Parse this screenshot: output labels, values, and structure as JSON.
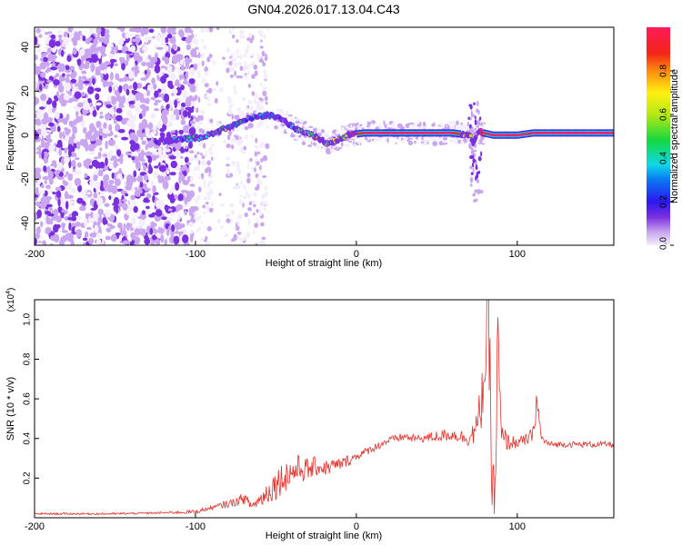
{
  "chart_data": [
    {
      "type": "heatmap",
      "title": "GN04.2026.017.13.04.C43",
      "xlabel": "Height of straight line (km)",
      "ylabel": "Frequency (Hz)",
      "xlim": [
        -200,
        160
      ],
      "ylim": [
        -50,
        49
      ],
      "x_ticks": [
        -200,
        -100,
        0,
        100
      ],
      "y_ticks": [
        -40,
        -20,
        0,
        20,
        40
      ],
      "colorbar": {
        "label": "Normalized spectral amplitude",
        "range": [
          0,
          1
        ],
        "ticks": [
          "0.0",
          "0.2",
          "0.4",
          "0.6",
          "0.8"
        ]
      },
      "ridge": {
        "x": [
          -125,
          -110,
          -95,
          -85,
          -75,
          -65,
          -55,
          -48,
          -40,
          -32,
          -25,
          -18,
          -12,
          -5,
          5,
          20,
          40,
          60,
          70,
          73,
          76,
          79,
          85,
          100,
          110,
          120,
          140,
          160
        ],
        "y": [
          -3,
          -2,
          -1,
          2,
          5,
          8,
          9,
          8,
          4,
          1,
          -1,
          -4,
          -2,
          0,
          1,
          1,
          1,
          1,
          0,
          -3,
          2,
          1,
          0,
          0,
          1,
          1,
          1,
          1
        ],
        "amplitude": [
          0.3,
          0.4,
          0.5,
          0.6,
          0.5,
          0.4,
          0.35,
          0.3,
          0.4,
          0.6,
          0.8,
          0.7,
          0.8,
          0.9,
          1.0,
          1.0,
          1.0,
          1.0,
          0.9,
          0.4,
          0.8,
          1.0,
          1.0,
          1.0,
          1.0,
          1.0,
          1.0,
          1.0
        ]
      }
    },
    {
      "type": "line",
      "xlabel": "Height of straight line (km)",
      "ylabel": "SNR (10 * v/v)",
      "y_multiplier": "(x10",
      "y_multiplier_exp": "4",
      "y_multiplier_close": ")",
      "xlim": [
        -200,
        160
      ],
      "ylim": [
        0,
        1.1
      ],
      "x_ticks": [
        -200,
        -100,
        0,
        100
      ],
      "y_ticks": [
        "0.2",
        "0.4",
        "0.6",
        "0.8",
        "1.0"
      ],
      "series": [
        {
          "name": "SNR",
          "color": "#e8302a",
          "x": [
            -200,
            -150,
            -120,
            -100,
            -90,
            -80,
            -75,
            -70,
            -65,
            -60,
            -55,
            -50,
            -45,
            -40,
            -35,
            -30,
            -25,
            -20,
            -15,
            -10,
            -5,
            0,
            5,
            10,
            15,
            20,
            25,
            30,
            35,
            40,
            50,
            60,
            70,
            75,
            78,
            80,
            82,
            84,
            86,
            88,
            90,
            95,
            100,
            105,
            110,
            112,
            115,
            120,
            130,
            140,
            150,
            160
          ],
          "y": [
            0.02,
            0.02,
            0.025,
            0.03,
            0.05,
            0.07,
            0.08,
            0.1,
            0.06,
            0.09,
            0.13,
            0.17,
            0.21,
            0.23,
            0.25,
            0.24,
            0.26,
            0.25,
            0.26,
            0.27,
            0.29,
            0.31,
            0.33,
            0.35,
            0.37,
            0.39,
            0.4,
            0.41,
            0.4,
            0.4,
            0.41,
            0.42,
            0.4,
            0.45,
            0.6,
            0.8,
            1.08,
            0.3,
            0.05,
            0.9,
            0.4,
            0.38,
            0.38,
            0.39,
            0.42,
            0.6,
            0.4,
            0.37,
            0.37,
            0.37,
            0.37,
            0.37
          ],
          "noise_amplitude": [
            0.005,
            0.005,
            0.005,
            0.01,
            0.01,
            0.02,
            0.02,
            0.03,
            0.02,
            0.04,
            0.06,
            0.08,
            0.08,
            0.08,
            0.07,
            0.06,
            0.05,
            0.04,
            0.04,
            0.03,
            0.03,
            0.02,
            0.02,
            0.02,
            0.02,
            0.02,
            0.02,
            0.02,
            0.02,
            0.02,
            0.03,
            0.03,
            0.04,
            0.08,
            0.15,
            0.25,
            0.3,
            0.2,
            0.15,
            0.25,
            0.08,
            0.04,
            0.03,
            0.03,
            0.04,
            0.08,
            0.02,
            0.015,
            0.015,
            0.015,
            0.015,
            0.015
          ]
        }
      ]
    }
  ]
}
